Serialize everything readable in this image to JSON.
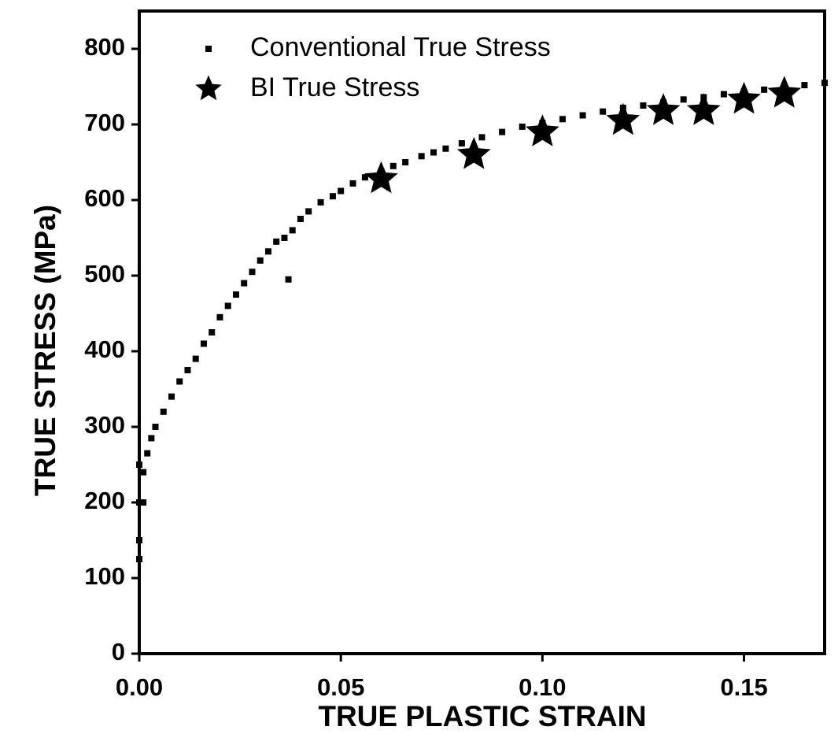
{
  "chart_data": {
    "type": "scatter",
    "xlabel": "TRUE PLASTIC STRAIN",
    "ylabel": "TRUE STRESS (MPa)",
    "xlim": [
      0,
      0.17
    ],
    "ylim": [
      0,
      850
    ],
    "xticks": [
      {
        "value": 0,
        "label": "0.00"
      },
      0.05,
      {
        "value": 0.1,
        "label": "0.10"
      },
      0.15
    ],
    "yticks": [
      0,
      100,
      200,
      300,
      400,
      500,
      600,
      700,
      800
    ],
    "legend": "upper left",
    "series": [
      {
        "name": "Conventional True Stress",
        "color": "#000000",
        "marker": "square",
        "x": [
          0,
          0,
          0,
          0,
          0.001,
          0.001,
          0.002,
          0.003,
          0.004,
          0.006,
          0.008,
          0.01,
          0.012,
          0.014,
          0.016,
          0.018,
          0.02,
          0.022,
          0.024,
          0.026,
          0.028,
          0.03,
          0.032,
          0.034,
          0.036,
          0.037,
          0.038,
          0.04,
          0.042,
          0.045,
          0.048,
          0.05,
          0.053,
          0.056,
          0.06,
          0.063,
          0.066,
          0.07,
          0.073,
          0.076,
          0.08,
          0.085,
          0.09,
          0.095,
          0.1,
          0.105,
          0.11,
          0.115,
          0.12,
          0.125,
          0.13,
          0.135,
          0.14,
          0.145,
          0.15,
          0.155,
          0.16,
          0.165,
          0.17
        ],
        "values": [
          125,
          150,
          200,
          250,
          240,
          200,
          265,
          285,
          300,
          320,
          340,
          360,
          375,
          390,
          410,
          425,
          445,
          460,
          475,
          490,
          505,
          520,
          532,
          545,
          550,
          495,
          560,
          575,
          585,
          597,
          605,
          612,
          622,
          630,
          638,
          645,
          650,
          658,
          663,
          668,
          675,
          683,
          690,
          697,
          702,
          707,
          712,
          717,
          722,
          725,
          729,
          733,
          736,
          740,
          743,
          746,
          749,
          752,
          755
        ]
      },
      {
        "name": "BI True Stress",
        "color": "#000000",
        "marker": "star",
        "x": [
          0.06,
          0.083,
          0.1,
          0.12,
          0.13,
          0.14,
          0.15,
          0.16
        ],
        "values": [
          628,
          660,
          690,
          705,
          718,
          718,
          733,
          741
        ]
      }
    ]
  }
}
